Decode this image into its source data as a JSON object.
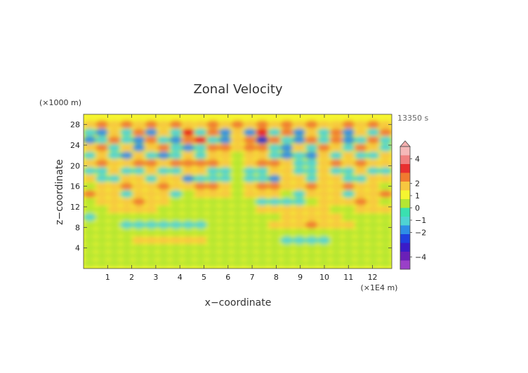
{
  "chart_data": {
    "type": "heatmap",
    "title": "Zonal Velocity",
    "xlabel": "x−coordinate",
    "ylabel": "z−coordinate",
    "x_unit": "(×1E4 m)",
    "y_unit": "(×1000 m)",
    "time_label": "13350 s",
    "xlim": [
      0,
      12.8
    ],
    "ylim": [
      0,
      30
    ],
    "x_ticks": [
      "1",
      "2",
      "3",
      "4",
      "5",
      "6",
      "7",
      "8",
      "9",
      "10",
      "11",
      "12"
    ],
    "y_ticks": [
      "4",
      "8",
      "12",
      "16",
      "20",
      "24",
      "28"
    ],
    "colorbar": {
      "ticks": [
        "4",
        "2",
        "1",
        "0",
        "−1",
        "−2",
        "−4"
      ],
      "tick_values": [
        4,
        2,
        1,
        0,
        -1,
        -2,
        -4
      ],
      "range": [
        -5,
        5
      ],
      "extend": "max"
    },
    "colors": {
      "strong_positive": "#e8201c",
      "positive": "#f07a30",
      "weak_positive": "#f7c740",
      "near_zero_positive": "#f5f530",
      "near_zero_negative": "#b4e633",
      "weak_negative": "#4fd3d3",
      "negative": "#2e8ee6",
      "strong_negative": "#1830c8"
    },
    "bands": [
      {
        "z": 28.0,
        "cells": [
          1,
          2,
          1,
          2,
          1,
          2,
          1,
          2,
          1,
          1,
          2,
          1,
          2,
          1,
          2,
          1,
          2,
          1,
          2,
          1,
          1,
          2,
          1,
          2,
          1
        ]
      },
      {
        "z": 26.5,
        "cells": [
          -1,
          -2,
          1,
          -1,
          2,
          -2,
          1,
          -1,
          3,
          -1,
          2,
          -2,
          1,
          -2,
          3,
          -1,
          2,
          -2,
          1,
          -1,
          2,
          -2,
          1,
          -1,
          2
        ]
      },
      {
        "z": 25.0,
        "cells": [
          -2,
          -1,
          2,
          -1,
          -2,
          2,
          -1,
          -2,
          2,
          3,
          -1,
          -2,
          1,
          2,
          -3,
          2,
          -1,
          -2,
          2,
          -1,
          2,
          -2,
          -1,
          2,
          -1
        ]
      },
      {
        "z": 23.5,
        "cells": [
          1,
          2,
          -1,
          1,
          -2,
          1,
          2,
          -1,
          -2,
          -1,
          2,
          2,
          1,
          2,
          2,
          -1,
          -2,
          1,
          -1,
          2,
          1,
          -1,
          2,
          1,
          -1
        ]
      },
      {
        "z": 22.0,
        "cells": [
          -1,
          1,
          -1,
          -2,
          1,
          -1,
          -2,
          -1,
          1,
          -1,
          1,
          1,
          0,
          1,
          1,
          -1,
          -2,
          -1,
          -2,
          1,
          -1,
          1,
          -1,
          -1,
          1
        ]
      },
      {
        "z": 20.5,
        "cells": [
          1,
          2,
          1,
          1,
          2,
          2,
          1,
          2,
          2,
          2,
          2,
          1,
          0,
          1,
          2,
          2,
          1,
          -1,
          -1,
          1,
          2,
          1,
          2,
          1,
          1
        ]
      },
      {
        "z": 19.0,
        "cells": [
          -1,
          -1,
          1,
          -1,
          -1,
          1,
          -1,
          -1,
          1,
          1,
          -1,
          -1,
          0,
          -1,
          -1,
          1,
          1,
          -1,
          -1,
          1,
          -1,
          -1,
          1,
          -1,
          -1
        ]
      },
      {
        "z": 17.5,
        "cells": [
          1,
          -1,
          -1,
          1,
          1,
          -1,
          1,
          1,
          -2,
          -1,
          -1,
          -1,
          0,
          -1,
          -1,
          -2,
          1,
          1,
          -1,
          1,
          1,
          -1,
          -1,
          1,
          1
        ]
      },
      {
        "z": 16.0,
        "cells": [
          0,
          1,
          1,
          2,
          1,
          1,
          2,
          1,
          1,
          2,
          2,
          1,
          0,
          1,
          2,
          2,
          1,
          1,
          2,
          1,
          1,
          2,
          1,
          1,
          0
        ]
      },
      {
        "z": 14.5,
        "cells": [
          2,
          1,
          1,
          -1,
          1,
          1,
          1,
          -1,
          0,
          1,
          1,
          1,
          0,
          1,
          1,
          1,
          0,
          -1,
          1,
          1,
          1,
          -1,
          1,
          1,
          2
        ]
      },
      {
        "z": 13.0,
        "cells": [
          0,
          1,
          1,
          1,
          2,
          1,
          1,
          0,
          0,
          0,
          0,
          0,
          0,
          0,
          -1,
          -1,
          -1,
          -1,
          0,
          1,
          1,
          1,
          2,
          1,
          0
        ]
      },
      {
        "z": 11.5,
        "cells": [
          0,
          0,
          1,
          1,
          1,
          1,
          0,
          0,
          0,
          0,
          0,
          0,
          0,
          0,
          1,
          1,
          1,
          1,
          1,
          1,
          0,
          0,
          1,
          1,
          1
        ]
      },
      {
        "z": 10.0,
        "cells": [
          -1,
          0,
          0,
          0,
          0,
          0,
          0,
          0,
          0,
          0,
          0,
          0,
          0,
          0,
          0,
          0,
          1,
          1,
          1,
          1,
          1,
          0,
          0,
          0,
          0
        ]
      },
      {
        "z": 8.5,
        "cells": [
          0,
          0,
          0,
          -1,
          -1,
          -1,
          -1,
          -1,
          -1,
          -1,
          0,
          0,
          0,
          0,
          0,
          1,
          1,
          1,
          2,
          1,
          1,
          1,
          0,
          0,
          0
        ]
      },
      {
        "z": 7.0,
        "cells": [
          0,
          0,
          0,
          0,
          0,
          0,
          0,
          0,
          0,
          0,
          0,
          0,
          0,
          0,
          0,
          0,
          0,
          0,
          0,
          0,
          0,
          0,
          0,
          0,
          0
        ]
      },
      {
        "z": 5.5,
        "cells": [
          0,
          0,
          0,
          0,
          1,
          1,
          1,
          1,
          1,
          1,
          0,
          0,
          0,
          0,
          0,
          0,
          -1,
          -1,
          -1,
          -1,
          0,
          0,
          0,
          0,
          0
        ]
      },
      {
        "z": 4.0,
        "cells": [
          0,
          0,
          0,
          0,
          0,
          0,
          0,
          0,
          0,
          0,
          0,
          0,
          0,
          0,
          0,
          0,
          0,
          0,
          0,
          0,
          0,
          0,
          0,
          0,
          0
        ]
      },
      {
        "z": 2.5,
        "cells": [
          0,
          0,
          0,
          0,
          0,
          0,
          0,
          0,
          0,
          0,
          0,
          0,
          0,
          0,
          0,
          0,
          0,
          0,
          0,
          0,
          0,
          0,
          0,
          0,
          0
        ]
      },
      {
        "z": 1.0,
        "cells": [
          0,
          0,
          0,
          0,
          0,
          0,
          0,
          0,
          0,
          0,
          0,
          0,
          0,
          0,
          0,
          0,
          0,
          0,
          0,
          0,
          0,
          0,
          0,
          0,
          0
        ]
      }
    ]
  }
}
